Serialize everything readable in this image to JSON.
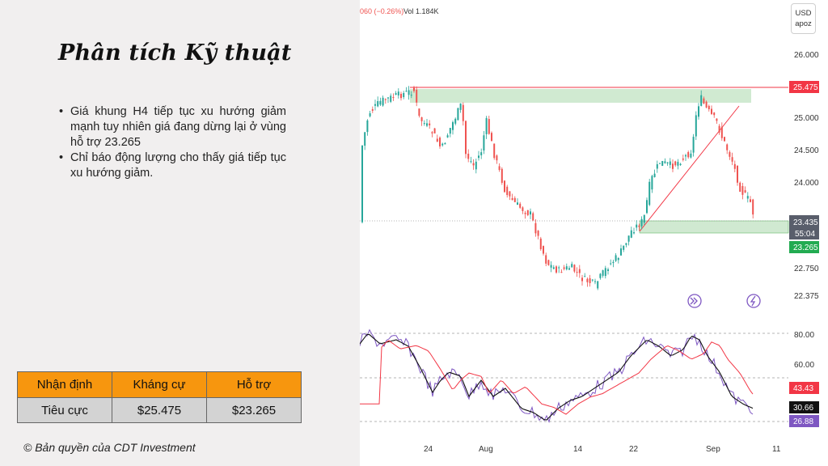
{
  "left": {
    "title": "Phân tích Kỹ thuật",
    "bullets": [
      "Giá khung H4 tiếp tục xu hướng giảm mạnh tuy nhiên giá đang dừng lại ở vùng hỗ trợ 23.265",
      "Chỉ báo động lượng cho thấy giá tiếp tục xu hướng giảm."
    ],
    "table": {
      "headers": [
        "Nhận định",
        "Kháng cự",
        "Hỗ trợ"
      ],
      "row": [
        "Tiêu cực",
        "$25.475",
        "$23.265"
      ]
    },
    "copyright": "© Bản quyền của CDT Investment"
  },
  "chart": {
    "ticker_change": "060 (−0.26%)",
    "volume": "Vol 1.184K",
    "currency": "USD",
    "scale": "apoz",
    "price_axis": [
      "26.000",
      "25.000",
      "24.500",
      "24.000",
      "22.750",
      "22.375"
    ],
    "resistance_tag": "25.475",
    "current_price_tag": "23.435",
    "countdown_tag": "55:04",
    "support_tag": "23.265",
    "osc_axis": [
      "80.00",
      "60.00"
    ],
    "osc_tags": [
      "43.43",
      "30.66",
      "26.88"
    ],
    "x_axis": [
      "24",
      "Aug",
      "14",
      "22",
      "Sep",
      "11"
    ],
    "colors": {
      "up": "#26a69a",
      "down": "#ef5350",
      "resistance_line": "#f23645",
      "zone_fill": "#c8e6c9",
      "support_tag": "#22ab51",
      "price_tag": "#595e6b",
      "osc_fast": "#7e57c2",
      "osc_slow": "#000000",
      "osc_signal": "#f23645",
      "accent": "#f7960e"
    },
    "icons": [
      "fast-forward-icon",
      "lightning-icon"
    ]
  }
}
